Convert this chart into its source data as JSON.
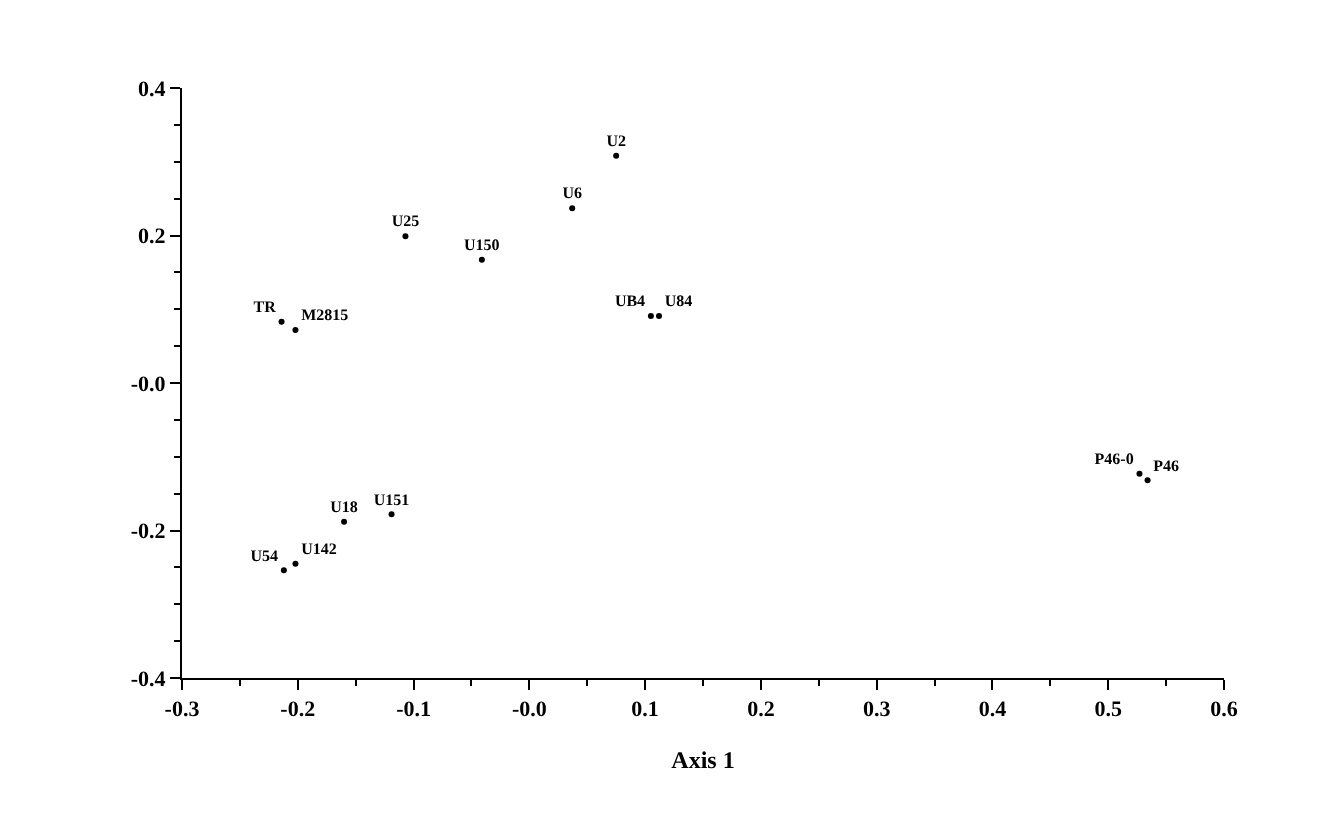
{
  "chart_data": {
    "type": "scatter",
    "xlabel": "Axis 1",
    "x": [
      0.075,
      0.037,
      -0.107,
      -0.041,
      -0.214,
      -0.202,
      0.105,
      0.112,
      -0.16,
      -0.119,
      -0.202,
      -0.212,
      0.527,
      0.534
    ],
    "values": [
      0.308,
      0.237,
      0.199,
      0.167,
      0.083,
      0.072,
      0.091,
      0.091,
      -0.188,
      -0.178,
      -0.245,
      -0.254,
      -0.123,
      -0.132
    ],
    "value_labels": [
      "U2",
      "U6",
      "U25",
      "U150",
      "TR",
      "M2815",
      "UB4",
      "U84",
      "U18",
      "U151",
      "U142",
      "U54",
      "P46-0",
      "P46"
    ],
    "color": "#000000",
    "marker": "circle",
    "legend": false,
    "xlim": [
      -0.3,
      0.6
    ],
    "ylim": [
      -0.4,
      0.4
    ],
    "xticks": [
      -0.3,
      -0.2,
      -0.1,
      {
        "value": 0,
        "label": "-0.0"
      },
      0.1,
      0.2,
      0.3,
      0.4,
      0.5,
      0.6
    ],
    "yticks": [
      -0.4,
      -0.2,
      {
        "value": 0,
        "label": "-0.0"
      },
      0.2,
      0.4
    ]
  }
}
